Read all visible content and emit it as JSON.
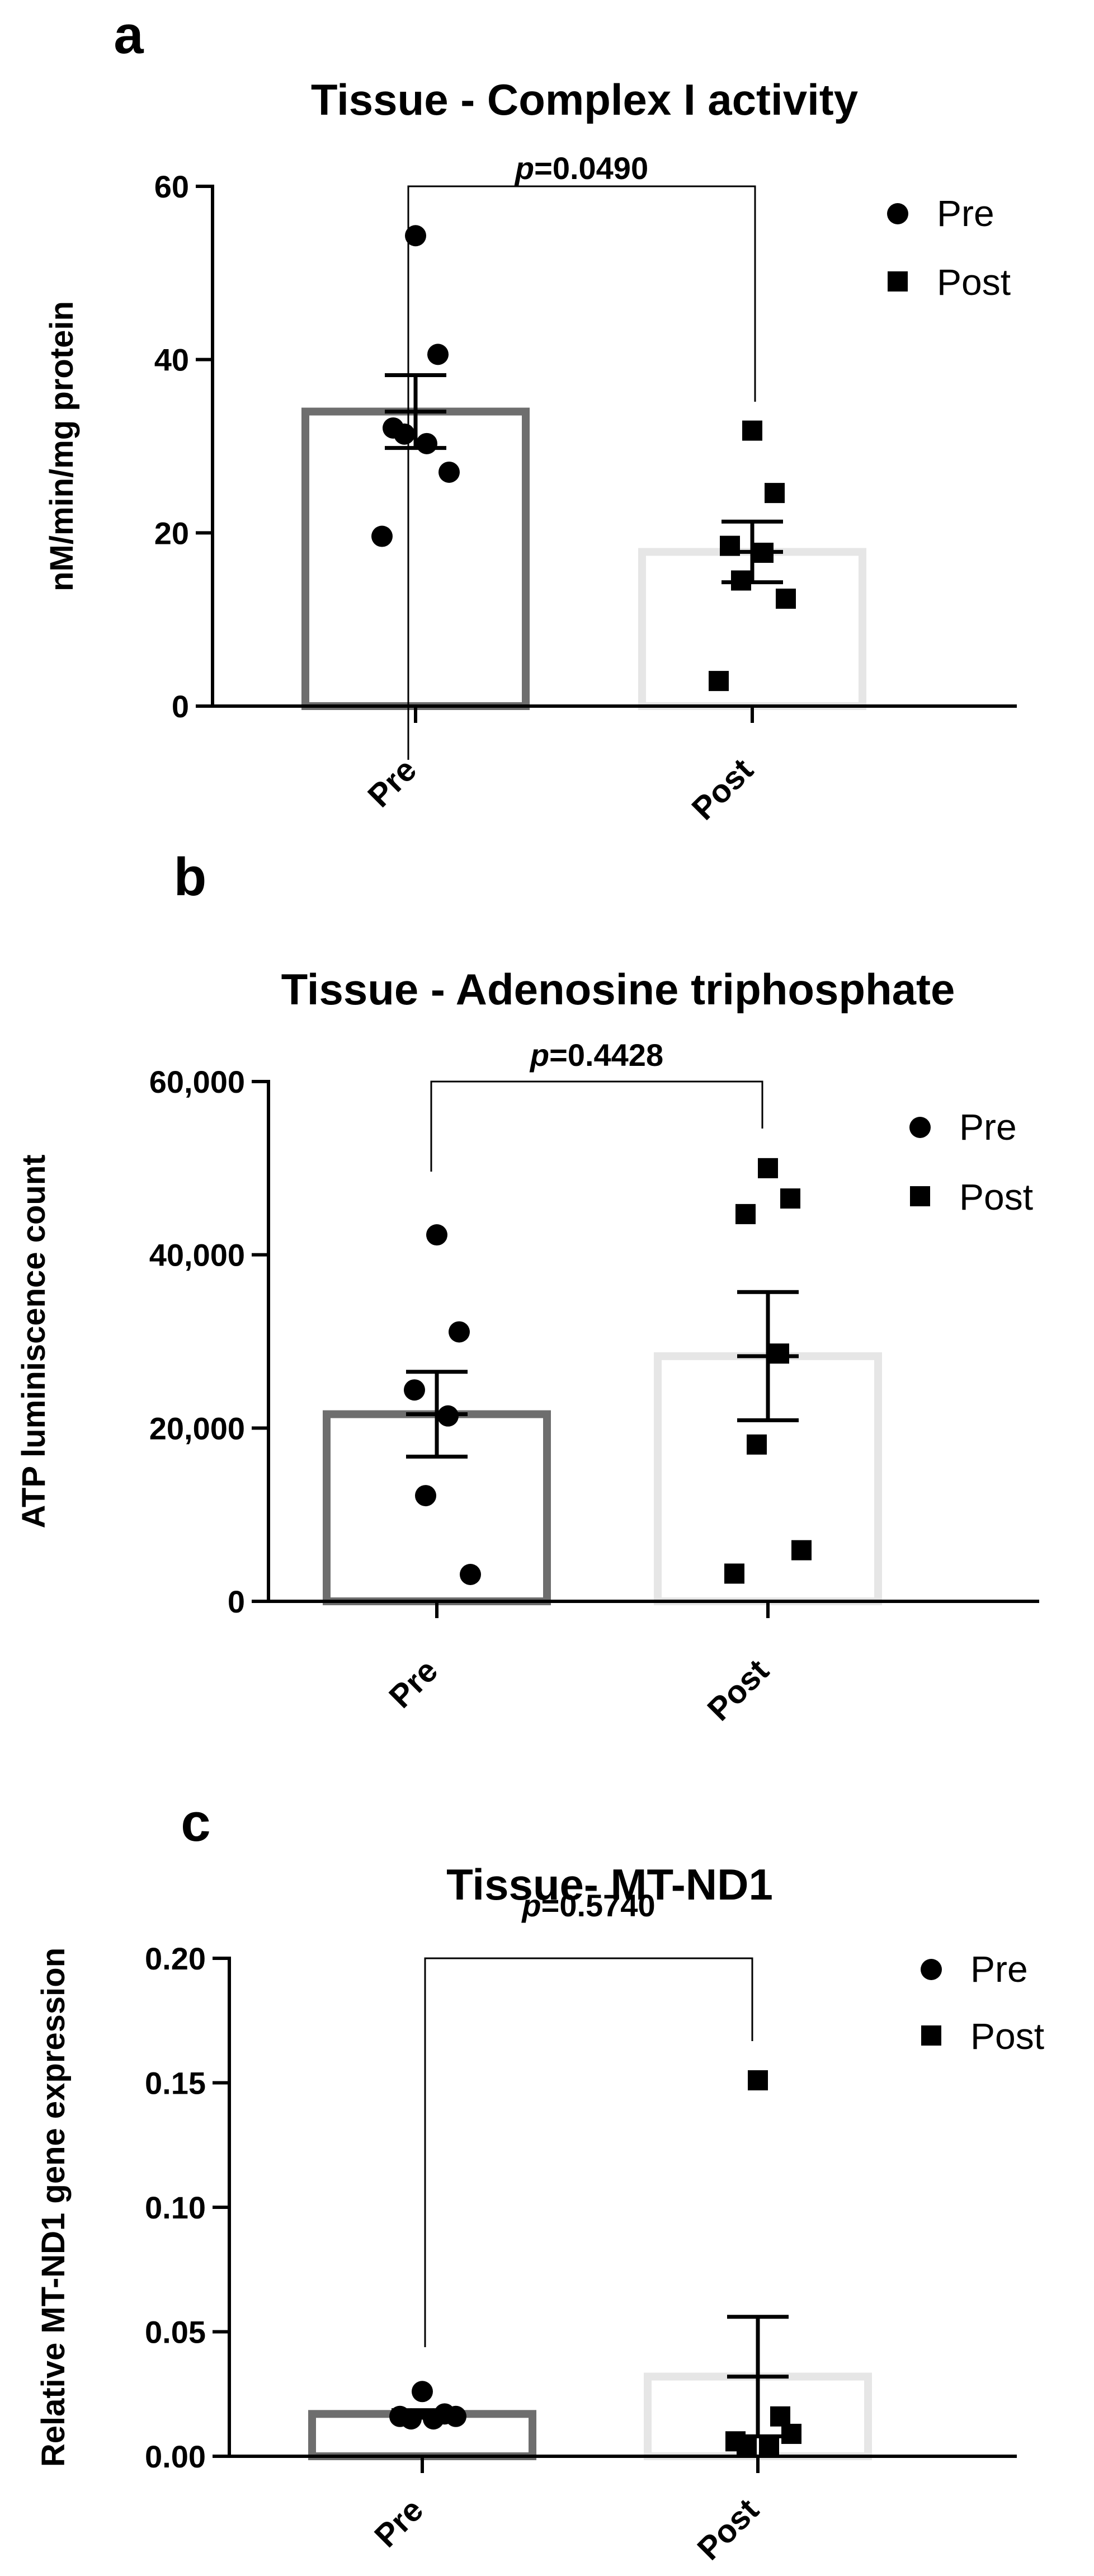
{
  "chart_data": [
    {
      "type": "bar",
      "panel_label": "a",
      "title": "Tissue - Complex I activity",
      "ylabel": "nM/min/mg protein",
      "xlabel": "",
      "ylim": [
        0,
        60
      ],
      "yticks": [
        "0",
        "20",
        "40",
        "60"
      ],
      "categories": [
        "Pre",
        "Post"
      ],
      "means": [
        34,
        17.8
      ],
      "sem": [
        4.2,
        3.5
      ],
      "points": {
        "Pre": [
          54.3,
          40.6,
          32.1,
          30.3,
          31.4,
          27.0,
          19.6
        ],
        "Post": [
          31.8,
          24.6,
          18.5,
          17.7,
          14.5,
          12.4,
          2.9
        ]
      },
      "p_value_label": "p=0.0490",
      "p_value_prefix": "p",
      "p_value_text": "=0.0490",
      "legend": [
        "Pre",
        "Post"
      ],
      "legend_position": "top-right",
      "bar_colors": [
        "#6e6e6e",
        "#e6e6e6"
      ]
    },
    {
      "type": "bar",
      "panel_label": "b",
      "title": "Tissue - Adenosine triphosphate",
      "ylabel": "ATP luminiscence count",
      "xlabel": "",
      "ylim": [
        0,
        60000
      ],
      "yticks": [
        "0",
        "20,000",
        "40,000",
        "60,000"
      ],
      "categories": [
        "Pre",
        "Post"
      ],
      "means": [
        21600,
        28300
      ],
      "sem": [
        4900,
        7400
      ],
      "points": {
        "Pre": [
          42300,
          31100,
          24400,
          21400,
          12200,
          3100
        ],
        "Post": [
          50000,
          46500,
          44700,
          28600,
          18100,
          5900,
          3200
        ]
      },
      "p_value_label": "p=0.4428",
      "p_value_prefix": "p",
      "p_value_text": "=0.4428",
      "legend": [
        "Pre",
        "Post"
      ],
      "legend_position": "top-right",
      "bar_colors": [
        "#6e6e6e",
        "#e6e6e6"
      ]
    },
    {
      "type": "bar",
      "panel_label": "c",
      "title": "Tissue- MT-ND1",
      "ylabel": "Relative MT-ND1 gene expression",
      "xlabel": "",
      "ylim": [
        0,
        0.2
      ],
      "yticks": [
        "0.00",
        "0.05",
        "0.10",
        "0.15",
        "0.20"
      ],
      "categories": [
        "Pre",
        "Post"
      ],
      "means": [
        0.017,
        0.032
      ],
      "sem": [
        0.0015,
        0.024
      ],
      "points": {
        "Pre": [
          0.026,
          0.017,
          0.016,
          0.015,
          0.015,
          0.016
        ],
        "Post": [
          0.151,
          0.016,
          0.006,
          0.004,
          0.004,
          0.009
        ]
      },
      "p_value_label": "p=0.5740",
      "p_value_prefix": "p",
      "p_value_text": "=0.5740",
      "legend": [
        "Pre",
        "Post"
      ],
      "legend_position": "top-right",
      "bar_colors": [
        "#6e6e6e",
        "#e6e6e6"
      ]
    }
  ]
}
